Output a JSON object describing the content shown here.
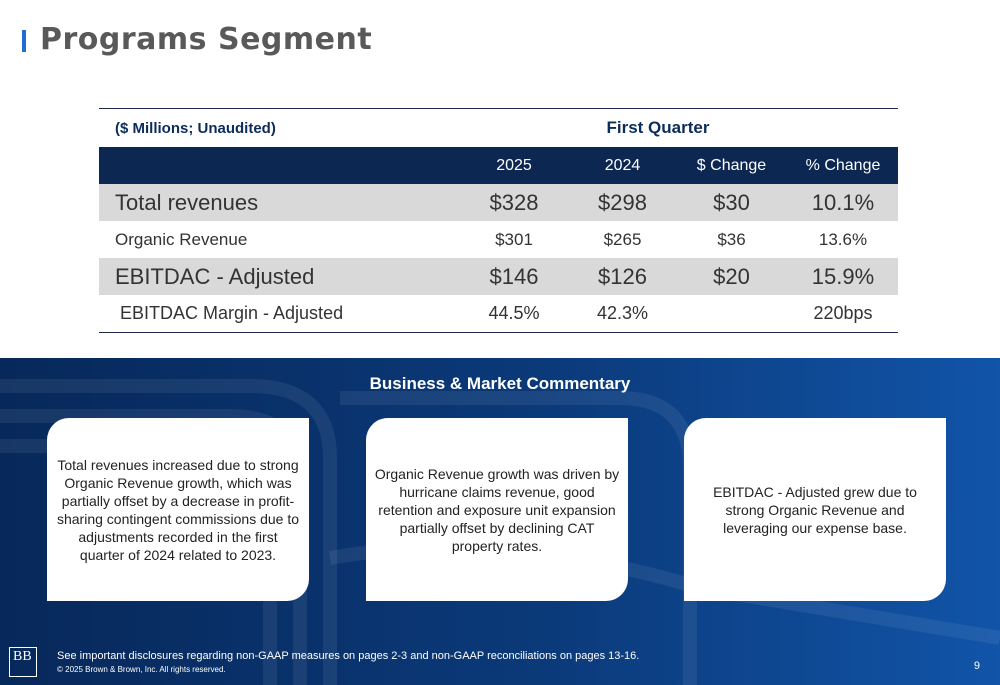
{
  "page": {
    "title": "Programs Segment",
    "page_number": "9"
  },
  "table": {
    "unit_label": "($ Millions; Unaudited)",
    "period_label": "First Quarter",
    "columns": [
      "2025",
      "2024",
      "$ Change",
      "% Change"
    ],
    "rows": [
      {
        "label": "Total revenues",
        "v2025": "$328",
        "v2024": "$298",
        "change": "$30",
        "pct": "10.1%"
      },
      {
        "label": "Organic Revenue",
        "v2025": "$301",
        "v2024": "$265",
        "change": "$36",
        "pct": "13.6%"
      },
      {
        "label": "EBITDAC - Adjusted",
        "v2025": "$146",
        "v2024": "$126",
        "change": "$20",
        "pct": "15.9%"
      },
      {
        "label": "EBITDAC Margin - Adjusted",
        "v2025": "44.5%",
        "v2024": "42.3%",
        "change": "",
        "pct": "220bps"
      }
    ]
  },
  "commentary": {
    "title": "Business & Market Commentary",
    "cards": [
      "Total revenues increased due to strong Organic Revenue growth, which was partially offset by a decrease in profit-sharing contingent commissions due to adjustments recorded in the first quarter of 2024 related to 2023.",
      "Organic Revenue growth was driven by hurricane claims revenue, good retention and exposure unit expansion partially offset by declining CAT property rates.",
      "EBITDAC - Adjusted grew due to strong Organic Revenue and leveraging our expense base."
    ]
  },
  "footer": {
    "logo_text": "BB",
    "disclosure": "See important disclosures regarding non-GAAP measures on pages 2-3 and non-GAAP reconciliations on pages 13-16.",
    "copyright": "© 2025 Brown & Brown, Inc. All rights reserved."
  },
  "colors": {
    "accent": "#1f6fd1",
    "header_navy": "#0c2752",
    "row_gray": "#d9d9d9",
    "panel_blue": "#0b3a7a"
  }
}
